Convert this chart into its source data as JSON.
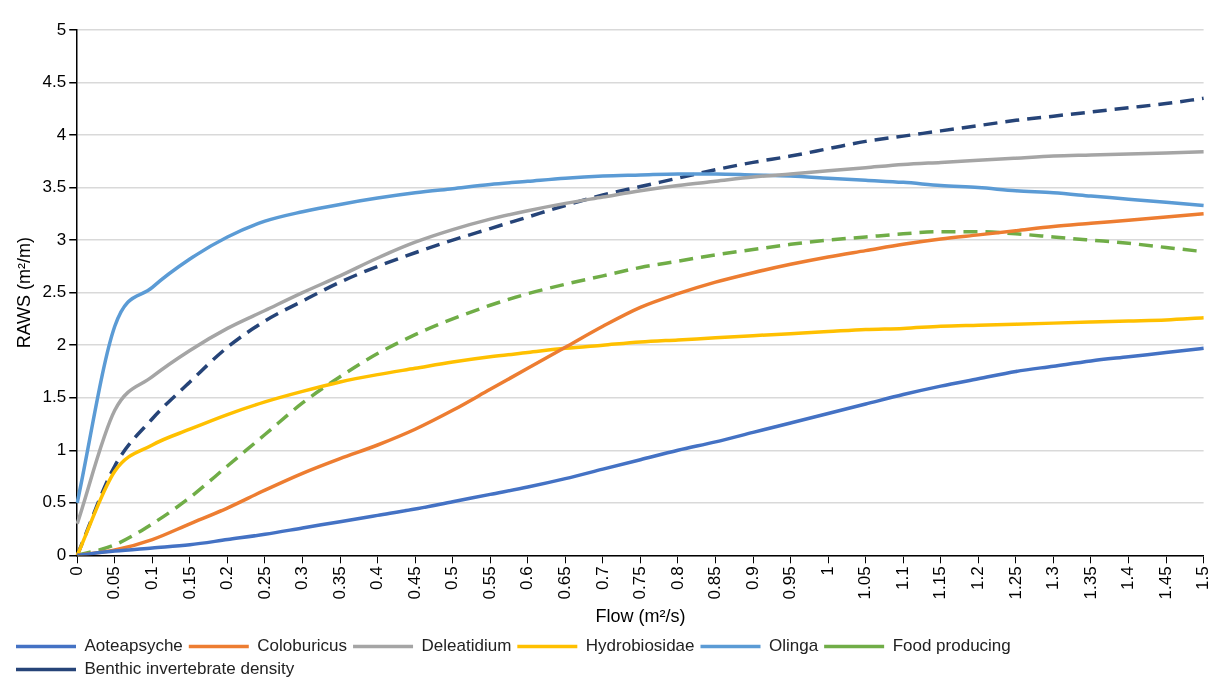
{
  "chart_data": {
    "type": "line",
    "xlabel": "Flow (m²/s)",
    "ylabel": "RAWS (m²/m)",
    "categories": [
      "0",
      "0.05",
      "0.1",
      "0.15",
      "0.2",
      "0.25",
      "0.3",
      "0.35",
      "0.4",
      "0.45",
      "0.5",
      "0.55",
      "0.6",
      "0.65",
      "0.7",
      "0.75",
      "0.8",
      "0.85",
      "0.9",
      "0.95",
      "1",
      "1.05",
      "1.1",
      "1.15",
      "1.2",
      "1.25",
      "1.3",
      "1.35",
      "1.4",
      "1.45",
      "1.5"
    ],
    "ylim": [
      0,
      5
    ],
    "yticks": [
      0,
      0.5,
      1,
      1.5,
      2,
      2.5,
      3,
      3.5,
      4,
      4.5,
      5
    ],
    "grid": "y",
    "legend": "bottom",
    "marker": "none",
    "series": [
      {
        "name": "Aoteapsyche",
        "color": "#4472c4",
        "line_style": "solid",
        "values": [
          0,
          0.04,
          0.07,
          0.1,
          0.15,
          0.2,
          0.26,
          0.32,
          0.38,
          0.44,
          0.51,
          0.58,
          0.65,
          0.73,
          0.82,
          0.91,
          1.0,
          1.08,
          1.17,
          1.26,
          1.35,
          1.44,
          1.53,
          1.61,
          1.68,
          1.75,
          1.8,
          1.85,
          1.89,
          1.93,
          1.97
        ]
      },
      {
        "name": "Coloburicus",
        "color": "#ed7d31",
        "line_style": "solid",
        "values": [
          0,
          0.05,
          0.15,
          0.3,
          0.45,
          0.62,
          0.78,
          0.92,
          1.05,
          1.2,
          1.38,
          1.58,
          1.78,
          1.98,
          2.18,
          2.36,
          2.49,
          2.6,
          2.69,
          2.77,
          2.84,
          2.9,
          2.96,
          3.01,
          3.05,
          3.09,
          3.13,
          3.16,
          3.19,
          3.22,
          3.25
        ]
      },
      {
        "name": "Deleatidium",
        "color": "#a5a5a5",
        "line_style": "solid",
        "values": [
          0.3,
          1.38,
          1.7,
          1.95,
          2.16,
          2.33,
          2.5,
          2.66,
          2.83,
          2.98,
          3.1,
          3.2,
          3.28,
          3.35,
          3.41,
          3.47,
          3.52,
          3.56,
          3.6,
          3.63,
          3.66,
          3.69,
          3.72,
          3.74,
          3.76,
          3.78,
          3.8,
          3.81,
          3.82,
          3.83,
          3.84
        ]
      },
      {
        "name": "Hydrobiosidae",
        "color": "#ffc000",
        "line_style": "solid",
        "values": [
          0,
          0.8,
          1.05,
          1.2,
          1.34,
          1.46,
          1.56,
          1.65,
          1.72,
          1.78,
          1.84,
          1.89,
          1.93,
          1.97,
          2.0,
          2.03,
          2.05,
          2.07,
          2.09,
          2.11,
          2.13,
          2.15,
          2.16,
          2.18,
          2.19,
          2.2,
          2.21,
          2.22,
          2.23,
          2.24,
          2.26
        ]
      },
      {
        "name": "Olinga",
        "color": "#5b9bd5",
        "line_style": "solid",
        "values": [
          0.5,
          2.18,
          2.55,
          2.82,
          3.03,
          3.18,
          3.27,
          3.34,
          3.4,
          3.45,
          3.49,
          3.53,
          3.56,
          3.59,
          3.61,
          3.62,
          3.63,
          3.63,
          3.62,
          3.61,
          3.59,
          3.57,
          3.55,
          3.52,
          3.5,
          3.47,
          3.45,
          3.42,
          3.39,
          3.36,
          3.33
        ]
      },
      {
        "name": "Food producing",
        "color": "#70ad47",
        "line_style": "dashed",
        "values": [
          0,
          0.1,
          0.3,
          0.55,
          0.85,
          1.15,
          1.45,
          1.7,
          1.92,
          2.1,
          2.25,
          2.38,
          2.49,
          2.58,
          2.66,
          2.74,
          2.8,
          2.86,
          2.91,
          2.96,
          3.0,
          3.03,
          3.06,
          3.08,
          3.08,
          3.06,
          3.03,
          3.0,
          2.97,
          2.93,
          2.89
        ]
      },
      {
        "name": "Benthic invertebrate density",
        "color": "#264478",
        "line_style": "dashed",
        "values": [
          0,
          0.85,
          1.3,
          1.65,
          1.98,
          2.23,
          2.42,
          2.6,
          2.75,
          2.88,
          3.0,
          3.11,
          3.22,
          3.33,
          3.43,
          3.51,
          3.59,
          3.67,
          3.74,
          3.8,
          3.87,
          3.94,
          3.99,
          4.04,
          4.09,
          4.14,
          4.18,
          4.22,
          4.26,
          4.3,
          4.35
        ]
      }
    ]
  }
}
